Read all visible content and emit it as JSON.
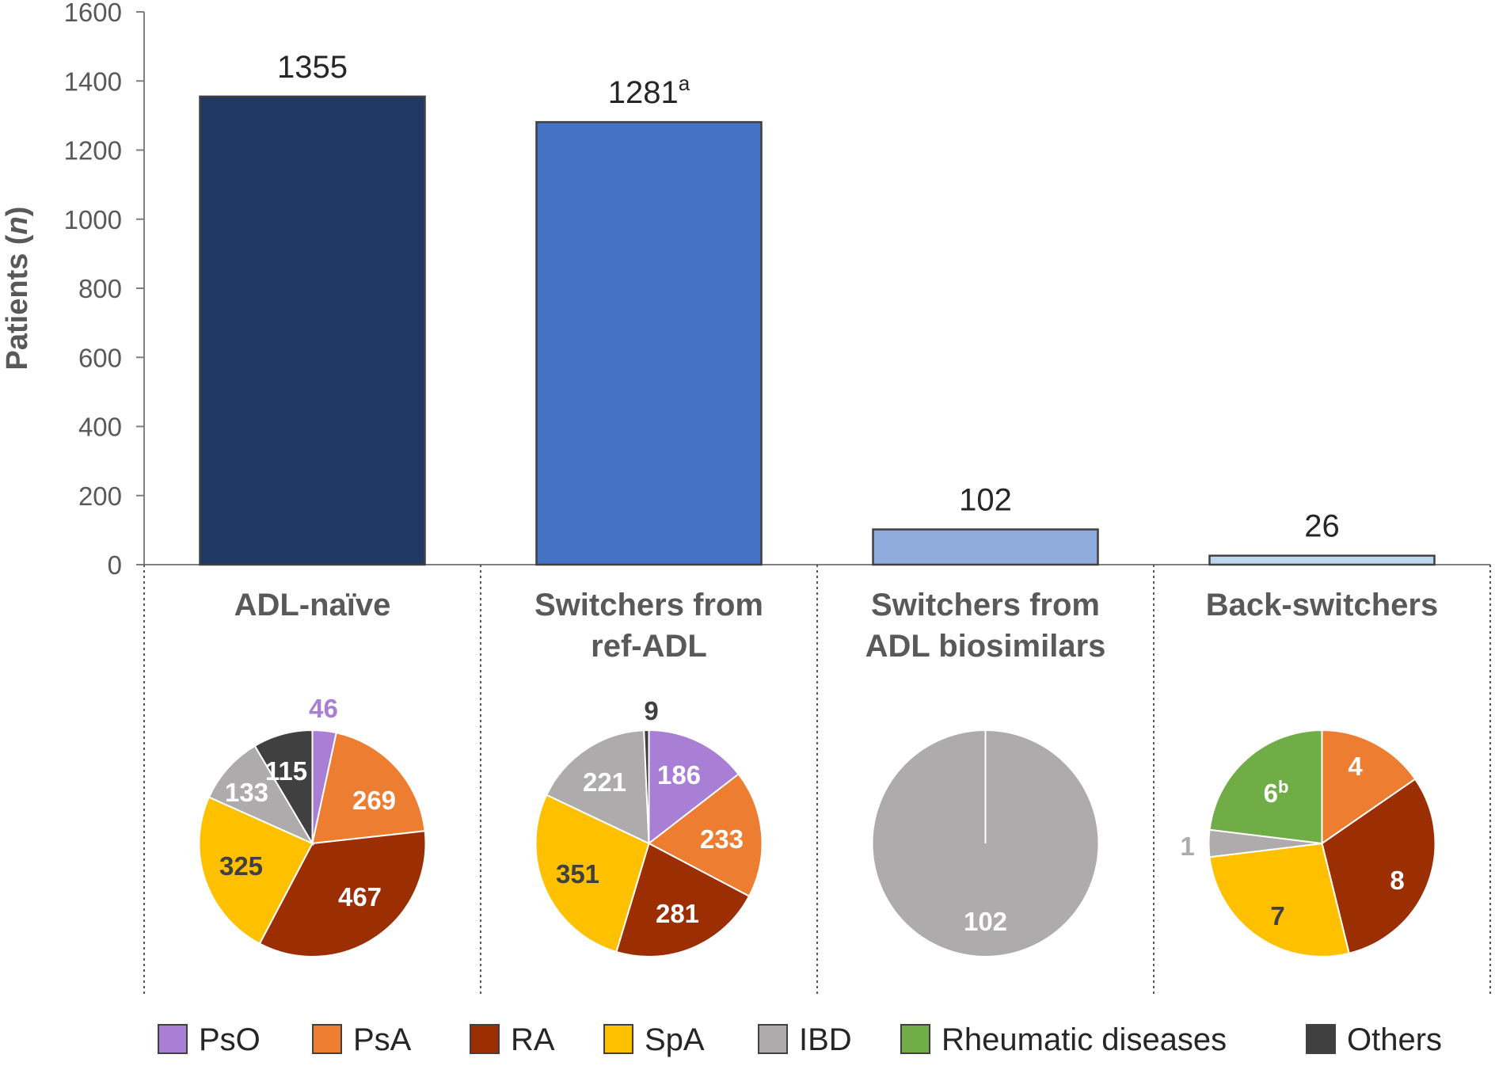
{
  "chart_data": {
    "type": "bar",
    "ylabel": "Patients",
    "ylabel_italic": "n",
    "ylim": [
      0,
      1600
    ],
    "yticks": [
      "0",
      "200",
      "400",
      "600",
      "800",
      "1000",
      "1200",
      "1400",
      "1600"
    ],
    "bars": [
      {
        "category": "ADL-naïve",
        "title_lines": [
          "ADL-naïve"
        ],
        "value": 1355,
        "label": "1355",
        "sup": "",
        "color": "#203864"
      },
      {
        "category": "Switchers from ref-ADL",
        "title_lines": [
          "Switchers from",
          "ref-ADL"
        ],
        "value": 1281,
        "label": "1281",
        "sup": "a",
        "color": "#4472C4"
      },
      {
        "category": "Switchers from ADL biosimilars",
        "title_lines": [
          "Switchers from",
          "ADL biosimilars"
        ],
        "value": 102,
        "label": "102",
        "sup": "",
        "color": "#8FAADC"
      },
      {
        "category": "Back-switchers",
        "title_lines": [
          "Back-switchers"
        ],
        "value": 26,
        "label": "26",
        "sup": "",
        "color": "#BDD7EE"
      }
    ],
    "pies": [
      {
        "group": "ADL-naïve",
        "slices": [
          {
            "name": "PsO",
            "value": 46,
            "label": "46",
            "sup": ""
          },
          {
            "name": "PsA",
            "value": 269,
            "label": "269",
            "sup": ""
          },
          {
            "name": "RA",
            "value": 467,
            "label": "467",
            "sup": ""
          },
          {
            "name": "SpA",
            "value": 325,
            "label": "325",
            "sup": ""
          },
          {
            "name": "IBD",
            "value": 133,
            "label": "133",
            "sup": ""
          },
          {
            "name": "Others",
            "value": 115,
            "label": "115",
            "sup": ""
          }
        ]
      },
      {
        "group": "Switchers from ref-ADL",
        "slices": [
          {
            "name": "PsO",
            "value": 186,
            "label": "186",
            "sup": ""
          },
          {
            "name": "PsA",
            "value": 233,
            "label": "233",
            "sup": ""
          },
          {
            "name": "RA",
            "value": 281,
            "label": "281",
            "sup": ""
          },
          {
            "name": "SpA",
            "value": 351,
            "label": "351",
            "sup": ""
          },
          {
            "name": "IBD",
            "value": 221,
            "label": "221",
            "sup": ""
          },
          {
            "name": "Others",
            "value": 9,
            "label": "9",
            "sup": ""
          }
        ]
      },
      {
        "group": "Switchers from ADL biosimilars",
        "slices": [
          {
            "name": "IBD",
            "value": 102,
            "label": "102",
            "sup": ""
          }
        ]
      },
      {
        "group": "Back-switchers",
        "slices": [
          {
            "name": "PsA",
            "value": 4,
            "label": "4",
            "sup": ""
          },
          {
            "name": "RA",
            "value": 8,
            "label": "8",
            "sup": ""
          },
          {
            "name": "SpA",
            "value": 7,
            "label": "7",
            "sup": ""
          },
          {
            "name": "IBD",
            "value": 1,
            "label": "1",
            "sup": ""
          },
          {
            "name": "Rheumatic diseases",
            "value": 6,
            "label": "6",
            "sup": "b"
          }
        ]
      }
    ],
    "legend_position": "bottom",
    "legend": [
      {
        "name": "PsO",
        "color": "#A97FD5"
      },
      {
        "name": "PsA",
        "color": "#ED7D31"
      },
      {
        "name": "RA",
        "color": "#9C2E04"
      },
      {
        "name": "SpA",
        "color": "#FFC000"
      },
      {
        "name": "IBD",
        "color": "#ADABAB"
      },
      {
        "name": "Rheumatic diseases",
        "color": "#70AD47"
      },
      {
        "name": "Others",
        "color": "#404040"
      }
    ]
  }
}
